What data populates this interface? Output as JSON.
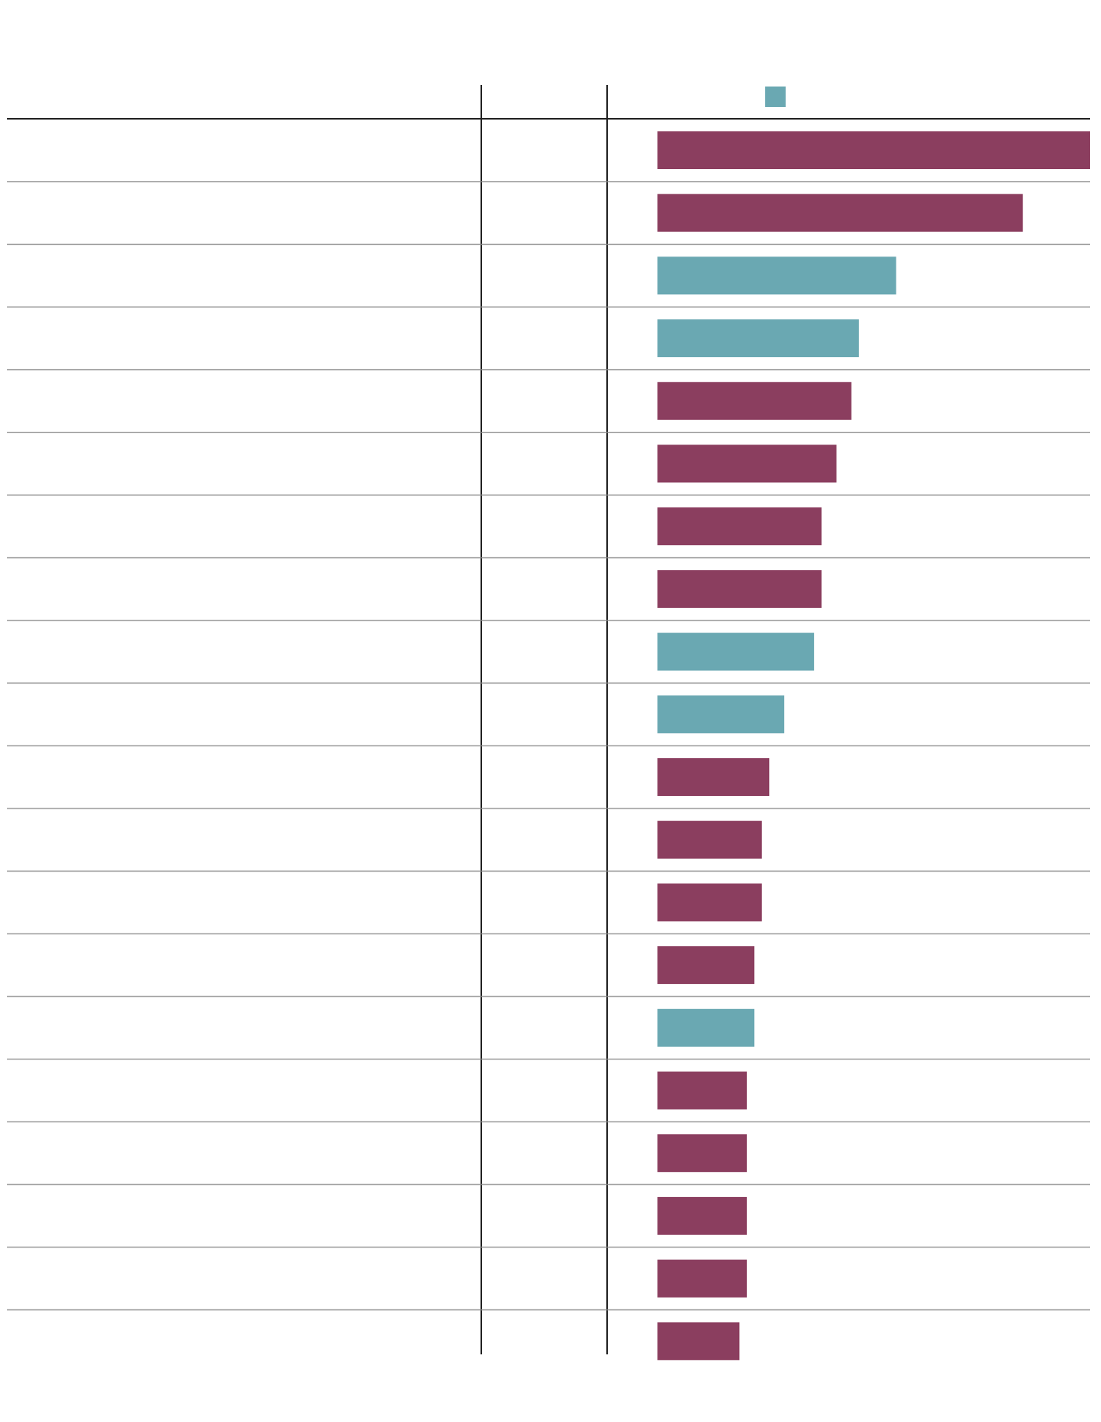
{
  "chart_data": {
    "type": "bar",
    "values": [
      58,
      49,
      32,
      27,
      26,
      24,
      22,
      22,
      21,
      17,
      15,
      14,
      14,
      13,
      13,
      12,
      12,
      12,
      12,
      11
    ],
    "colors": [
      "#8b3e5f",
      "#8b3e5f",
      "#6aa8b2",
      "#6aa8b2",
      "#8b3e5f",
      "#8b3e5f",
      "#8b3e5f",
      "#8b3e5f",
      "#6aa8b2",
      "#6aa8b2",
      "#8b3e5f",
      "#8b3e5f",
      "#8b3e5f",
      "#8b3e5f",
      "#6aa8b2",
      "#8b3e5f",
      "#8b3e5f",
      "#8b3e5f",
      "#8b3e5f",
      "#8b3e5f"
    ],
    "legend_color": "#6aa8b2"
  }
}
